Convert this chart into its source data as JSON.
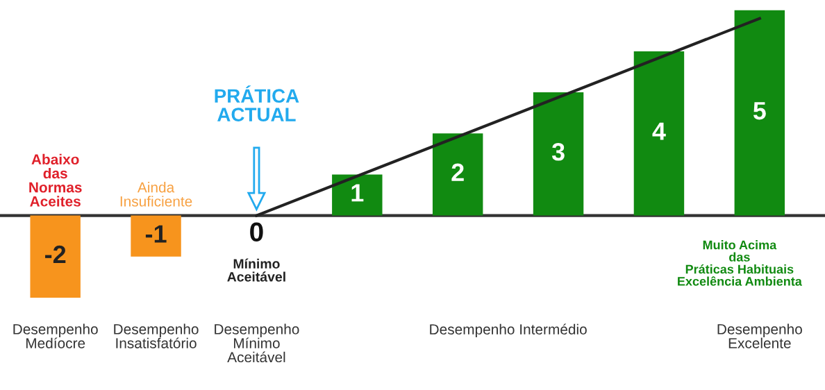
{
  "chart_data": {
    "type": "bar",
    "categories": [
      "Desempenho\nMedíocre",
      "Desempenho\nInsatisfatório",
      "Desempenho\nMínimo\nAceitável",
      null,
      null,
      null,
      null,
      "Desempenho\nExcelente"
    ],
    "series": [
      {
        "colors": [
          "#f7941d",
          "#f7941d",
          "#f7941d",
          "#118a11",
          "#118a11",
          "#118a11",
          "#118a11",
          "#118a11"
        ],
        "values": [
          -2,
          -1,
          0,
          1,
          2,
          3,
          4,
          5
        ],
        "value_labels": [
          "-2",
          "-1",
          "0",
          "1",
          "2",
          "3",
          "4",
          "5"
        ]
      },
      {
        "type": "line",
        "color": "#222222",
        "values": [
          null,
          null,
          0,
          null,
          null,
          null,
          null,
          4.8
        ]
      }
    ],
    "annotations": [
      "Abaixo\ndas\nNormas\nAceites",
      "Ainda\nInsuficiente",
      "PRÁTICA\nACTUAL",
      "Mínimo\nAceitável",
      "Muito Acima\ndas\nPráticas Habituais\nExcelência Ambienta",
      "Desempenho Intermédio"
    ]
  }
}
